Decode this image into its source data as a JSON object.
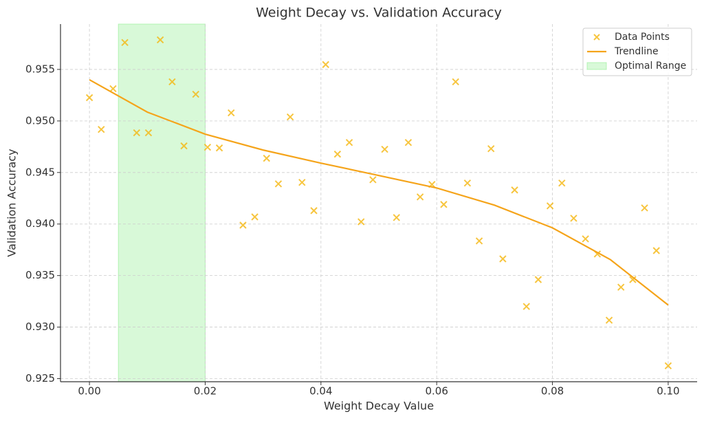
{
  "chart_data": {
    "type": "scatter",
    "title": "Weight Decay vs. Validation Accuracy",
    "x_label": "Weight Decay Value",
    "y_label": "Validation Accuracy",
    "xlim": [
      -0.005,
      0.105
    ],
    "ylim": [
      0.9247,
      0.9594
    ],
    "xticks": [
      {
        "value": 0,
        "label": "0.00"
      },
      0.02,
      0.04,
      0.06,
      0.08,
      {
        "value": 0.1,
        "label": "0.10"
      }
    ],
    "yticks": [
      0.925,
      {
        "value": 0.93,
        "label": "0.930"
      },
      0.935,
      {
        "value": 0.94,
        "label": "0.940"
      },
      0.945,
      {
        "value": 0.95,
        "label": "0.950"
      },
      0.955
    ],
    "grid": true,
    "legend": "upper right",
    "span": {
      "name": "Optimal Range",
      "range": [
        0.005,
        0.02
      ],
      "color": "#90ee90"
    },
    "series": [
      {
        "name": "Data Points",
        "type": "scatter",
        "color": "#f5b70f",
        "x": [
          0,
          0.00204,
          0.00408,
          0.00612,
          0.00816,
          0.0102,
          0.01224,
          0.01429,
          0.01633,
          0.01837,
          0.02041,
          0.02245,
          0.02449,
          0.02653,
          0.02857,
          0.03061,
          0.03265,
          0.03469,
          0.03673,
          0.03878,
          0.04082,
          0.04286,
          0.0449,
          0.04694,
          0.04898,
          0.05102,
          0.05306,
          0.0551,
          0.05714,
          0.05918,
          0.06122,
          0.06327,
          0.06531,
          0.06735,
          0.06939,
          0.07143,
          0.07347,
          0.07551,
          0.07755,
          0.07959,
          0.08163,
          0.08367,
          0.08571,
          0.08776,
          0.0898,
          0.09184,
          0.09388,
          0.09592,
          0.09796,
          0.1
        ],
        "values": [
          0.95226,
          0.94918,
          0.95313,
          0.95761,
          0.94885,
          0.94885,
          0.95787,
          0.9538,
          0.94758,
          0.95259,
          0.94745,
          0.94738,
          0.95079,
          0.93989,
          0.94069,
          0.94638,
          0.9439,
          0.95039,
          0.94404,
          0.9413,
          0.95547,
          0.94678,
          0.94791,
          0.94022,
          0.9443,
          0.94725,
          0.94063,
          0.94791,
          0.94263,
          0.94384,
          0.9419,
          0.9538,
          0.94397,
          0.93836,
          0.94731,
          0.93662,
          0.9433,
          0.932,
          0.93461,
          0.94176,
          0.94397,
          0.94056,
          0.93856,
          0.93709,
          0.93067,
          0.93387,
          0.93461,
          0.94156,
          0.93742,
          0.92625
        ]
      },
      {
        "name": "Trendline",
        "type": "line",
        "color": "#f5a41a",
        "x": [
          0,
          0.01,
          0.02,
          0.03,
          0.04,
          0.05,
          0.06,
          0.07,
          0.08,
          0.09,
          0.1
        ],
        "values": [
          0.954,
          0.95086,
          0.94872,
          0.94718,
          0.94591,
          0.94471,
          0.9435,
          0.94183,
          0.93963,
          0.93655,
          0.93214
        ]
      }
    ]
  }
}
